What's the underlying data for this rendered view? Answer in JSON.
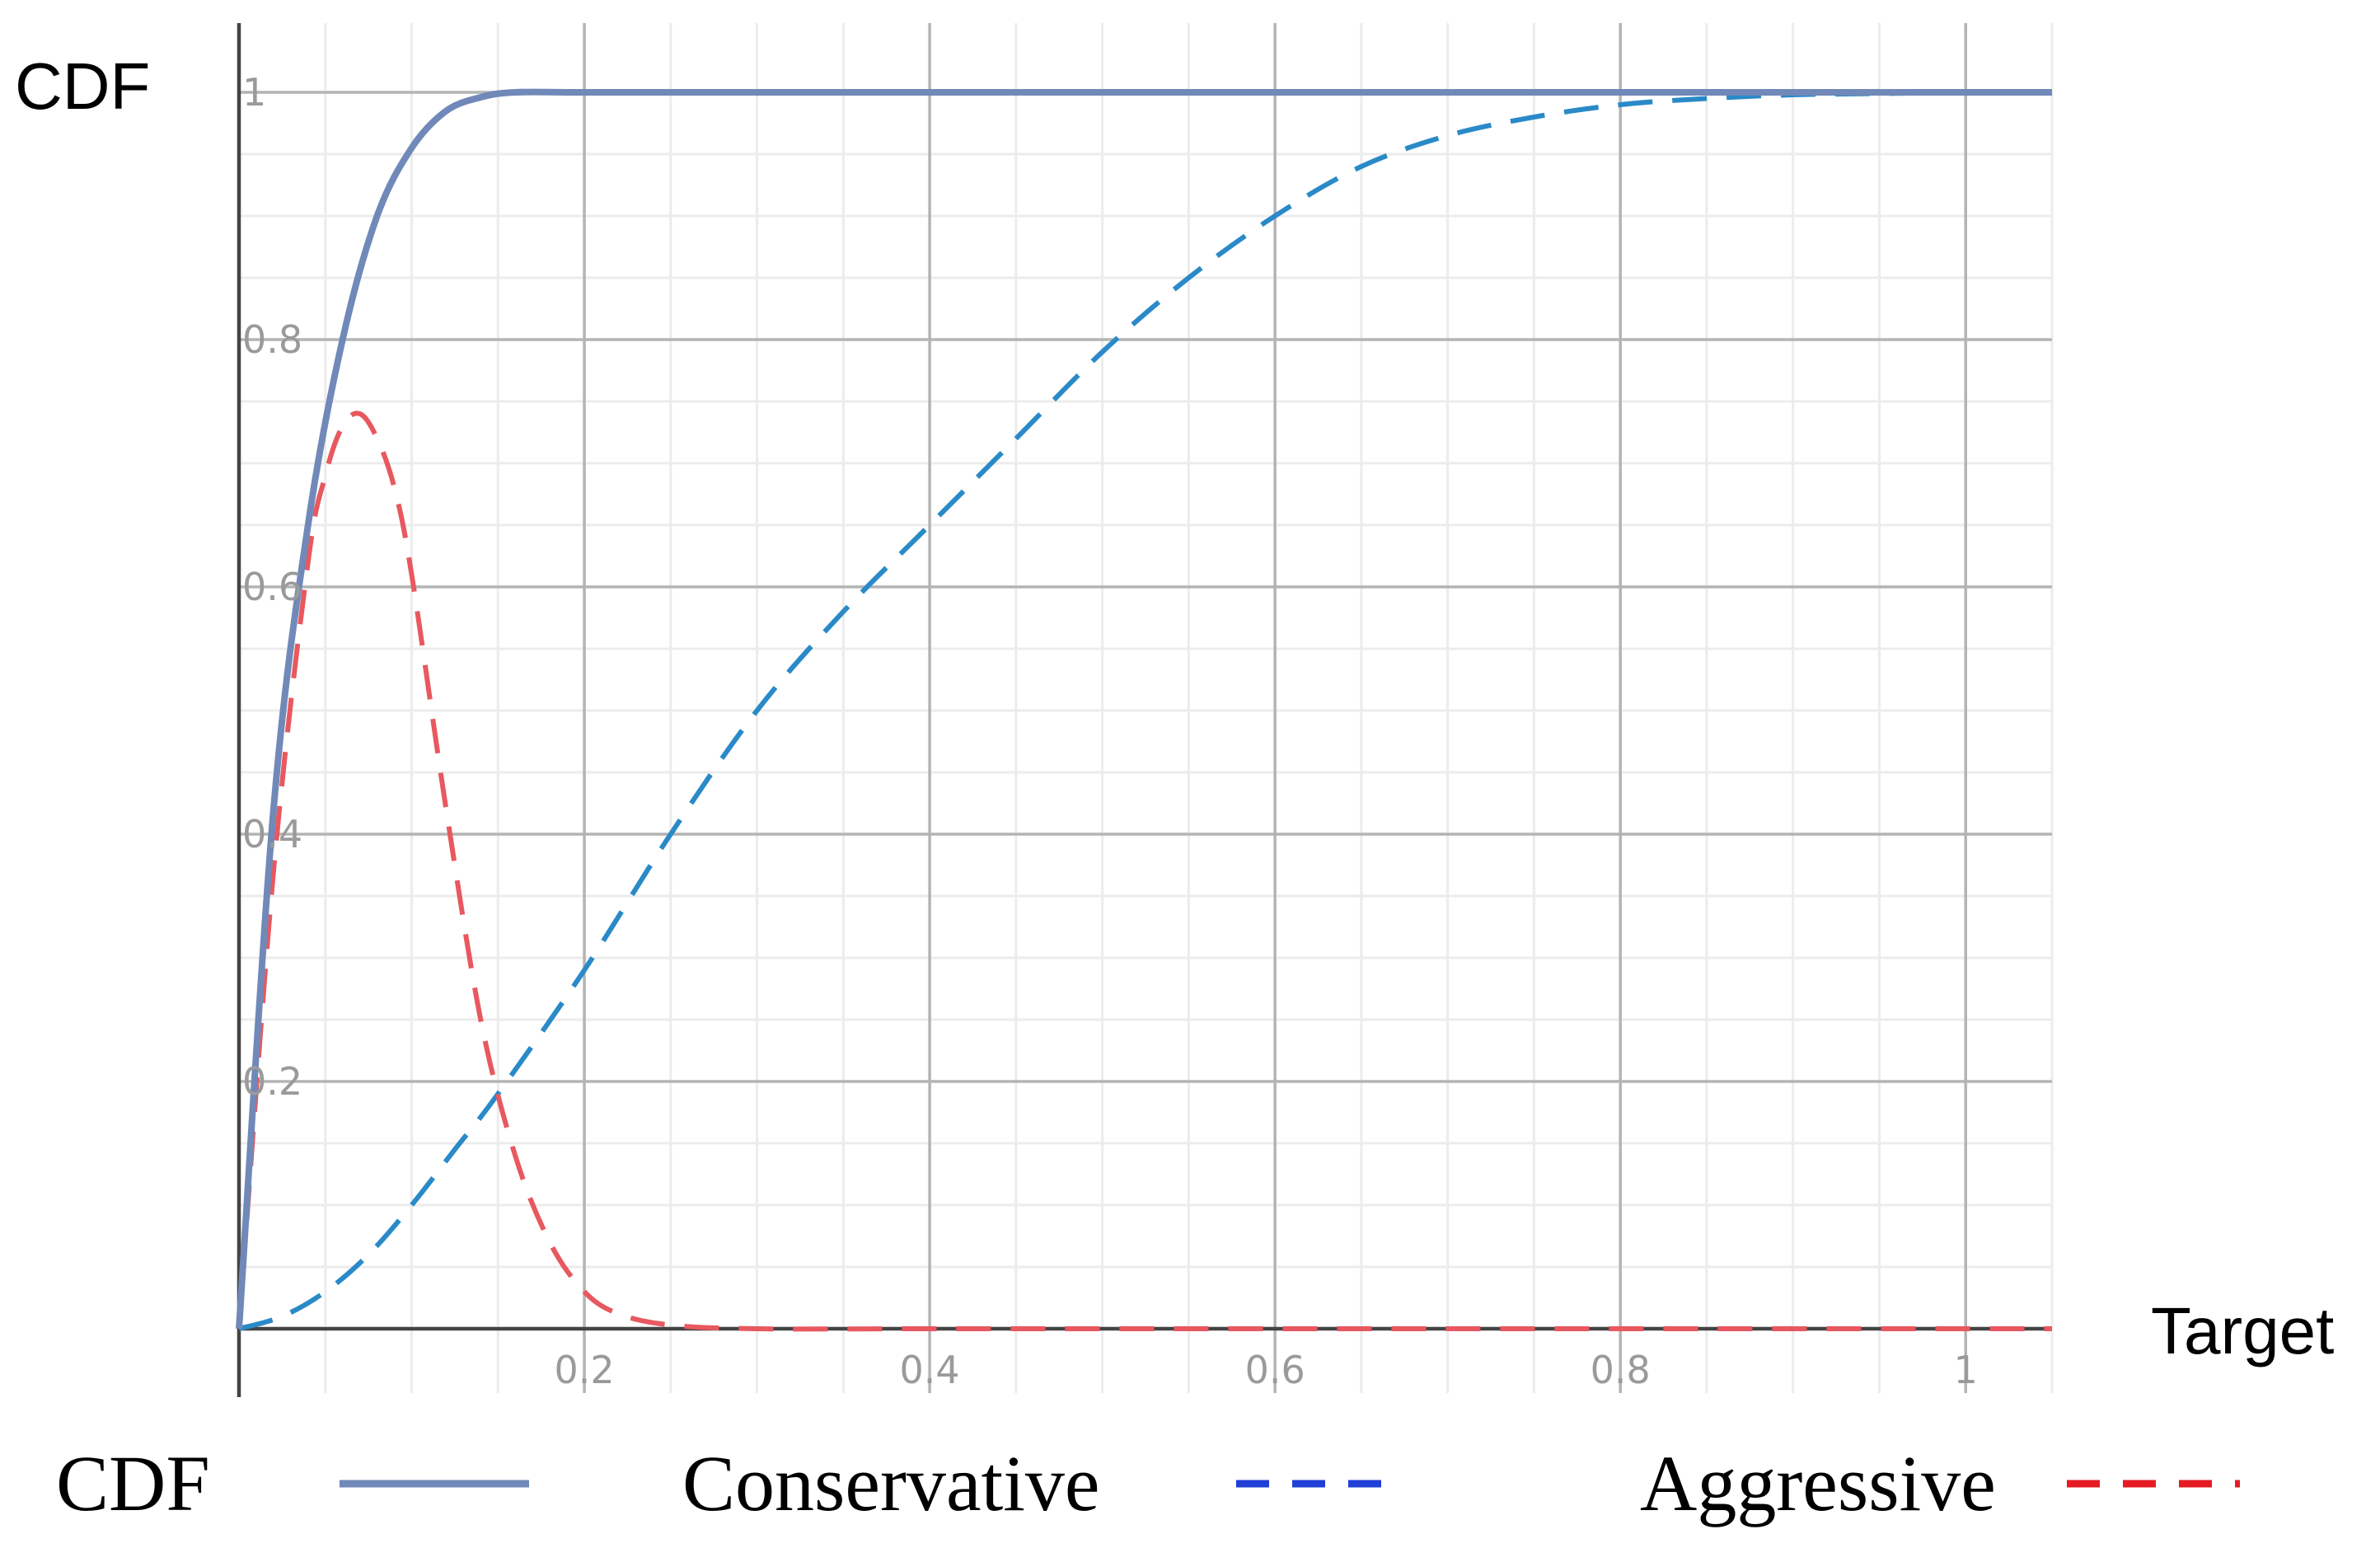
{
  "chart_data": {
    "type": "line",
    "title": "",
    "xlabel": "Target",
    "ylabel": "CDF",
    "xlim": [
      0,
      1.05
    ],
    "ylim": [
      0,
      1
    ],
    "x_ticks": [
      0.2,
      0.4,
      0.6,
      0.8,
      1
    ],
    "x_tick_labels": [
      "0.2",
      "0.4",
      "0.6",
      "0.8",
      "1"
    ],
    "y_ticks": [
      0.2,
      0.4,
      0.6,
      0.8,
      1
    ],
    "y_tick_labels": [
      "0.2",
      "0.4",
      "0.6",
      "0.8",
      "1"
    ],
    "grid": true,
    "legend_position": "bottom",
    "series": [
      {
        "name": "CDF",
        "style": "solid",
        "color": "#7089b8",
        "x": [
          0,
          0.02,
          0.04,
          0.06,
          0.08,
          0.1,
          0.12,
          0.14,
          0.16,
          0.2,
          0.3,
          0.5,
          0.7,
          0.9,
          1.05
        ],
        "y": [
          0,
          0.42,
          0.65,
          0.8,
          0.9,
          0.955,
          0.985,
          0.996,
          1,
          1,
          1,
          1,
          1,
          1,
          1
        ]
      },
      {
        "name": "Conservative",
        "style": "dashed",
        "color": "#2a8ac8",
        "x": [
          0,
          0.025,
          0.05,
          0.075,
          0.1,
          0.125,
          0.15,
          0.2,
          0.25,
          0.3,
          0.35,
          0.4,
          0.45,
          0.5,
          0.55,
          0.6,
          0.65,
          0.7,
          0.75,
          0.8,
          0.85,
          0.9,
          0.95,
          1,
          1.05
        ],
        "y": [
          0,
          0.01,
          0.03,
          0.06,
          0.1,
          0.145,
          0.19,
          0.29,
          0.4,
          0.5,
          0.58,
          0.65,
          0.72,
          0.79,
          0.85,
          0.9,
          0.94,
          0.965,
          0.98,
          0.99,
          0.995,
          0.998,
          0.999,
          1,
          1
        ]
      },
      {
        "name": "Aggressive",
        "style": "dashed",
        "color": "#e8585f",
        "x": [
          0,
          0.02,
          0.04,
          0.05,
          0.06,
          0.07,
          0.08,
          0.09,
          0.1,
          0.12,
          0.14,
          0.16,
          0.18,
          0.2,
          0.22,
          0.25,
          0.3,
          0.4,
          0.6,
          0.8,
          1.05
        ],
        "y": [
          0,
          0.37,
          0.62,
          0.69,
          0.73,
          0.74,
          0.72,
          0.68,
          0.61,
          0.42,
          0.25,
          0.14,
          0.07,
          0.03,
          0.012,
          0.003,
          0,
          0,
          0,
          0,
          0
        ]
      }
    ]
  },
  "legend": {
    "items": [
      {
        "label": "CDF",
        "line_color": "#7089b8",
        "style": "solid"
      },
      {
        "label": "Conservative",
        "line_color": "#1f3fd6",
        "style": "dashed"
      },
      {
        "label": "Aggressive",
        "line_color": "#e51b24",
        "style": "dashed"
      }
    ]
  }
}
